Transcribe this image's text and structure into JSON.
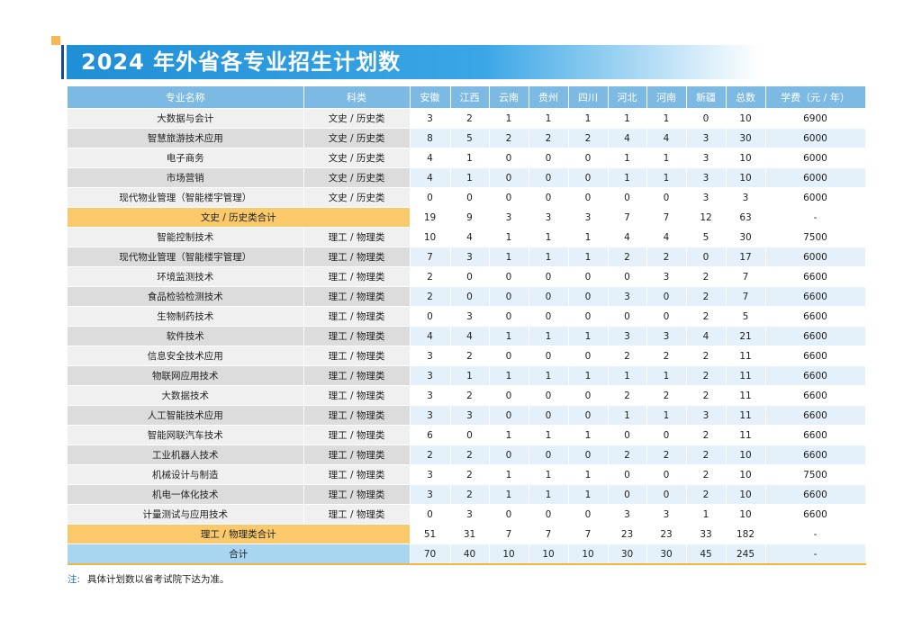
{
  "title": "2024 年外省各专业招生计划数",
  "table": {
    "header": [
      "专业名称",
      "科类",
      "安徽",
      "江西",
      "云南",
      "贵州",
      "四川",
      "河北",
      "河南",
      "新疆",
      "总数",
      "学费（元 / 年）"
    ],
    "liberal_rows": [
      [
        "大数据与会计",
        "文史 / 历史类",
        3,
        2,
        1,
        1,
        1,
        1,
        1,
        0,
        10,
        6900
      ],
      [
        "智慧旅游技术应用",
        "文史 / 历史类",
        8,
        5,
        2,
        2,
        2,
        4,
        4,
        3,
        30,
        6000
      ],
      [
        "电子商务",
        "文史 / 历史类",
        4,
        1,
        0,
        0,
        0,
        1,
        1,
        3,
        10,
        6000
      ],
      [
        "市场营销",
        "文史 / 历史类",
        4,
        1,
        0,
        0,
        0,
        1,
        1,
        3,
        10,
        6000
      ],
      [
        "现代物业管理（智能楼宇管理）",
        "文史 / 历史类",
        0,
        0,
        0,
        0,
        0,
        0,
        0,
        3,
        3,
        6000
      ]
    ],
    "liberal_subtotal": {
      "label": "文史 / 历史类合计",
      "values": [
        19,
        9,
        3,
        3,
        3,
        7,
        7,
        12,
        63,
        "-"
      ]
    },
    "science_rows": [
      [
        "智能控制技术",
        "理工 / 物理类",
        10,
        4,
        1,
        1,
        1,
        4,
        4,
        5,
        30,
        7500
      ],
      [
        "现代物业管理（智能楼宇管理）",
        "理工 / 物理类",
        7,
        3,
        1,
        1,
        1,
        2,
        2,
        0,
        17,
        6000
      ],
      [
        "环境监测技术",
        "理工 / 物理类",
        2,
        0,
        0,
        0,
        0,
        0,
        3,
        2,
        7,
        6600
      ],
      [
        "食品检验检测技术",
        "理工 / 物理类",
        2,
        0,
        0,
        0,
        0,
        3,
        0,
        2,
        7,
        6600
      ],
      [
        "生物制药技术",
        "理工 / 物理类",
        0,
        3,
        0,
        0,
        0,
        0,
        0,
        2,
        5,
        6600
      ],
      [
        "软件技术",
        "理工 / 物理类",
        4,
        4,
        1,
        1,
        1,
        3,
        3,
        4,
        21,
        6600
      ],
      [
        "信息安全技术应用",
        "理工 / 物理类",
        3,
        2,
        0,
        0,
        0,
        2,
        2,
        2,
        11,
        6600
      ],
      [
        "物联网应用技术",
        "理工 / 物理类",
        3,
        1,
        1,
        1,
        1,
        1,
        1,
        2,
        11,
        6600
      ],
      [
        "大数据技术",
        "理工 / 物理类",
        3,
        2,
        0,
        0,
        0,
        2,
        2,
        2,
        11,
        6600
      ],
      [
        "人工智能技术应用",
        "理工 / 物理类",
        3,
        3,
        0,
        0,
        0,
        1,
        1,
        3,
        11,
        6600
      ],
      [
        "智能网联汽车技术",
        "理工 / 物理类",
        6,
        0,
        1,
        1,
        1,
        0,
        0,
        2,
        11,
        6600
      ],
      [
        "工业机器人技术",
        "理工 / 物理类",
        2,
        2,
        0,
        0,
        0,
        2,
        2,
        2,
        10,
        6600
      ],
      [
        "机械设计与制造",
        "理工 / 物理类",
        3,
        2,
        1,
        1,
        1,
        0,
        0,
        2,
        10,
        7500
      ],
      [
        "机电一体化技术",
        "理工 / 物理类",
        3,
        2,
        1,
        1,
        1,
        0,
        0,
        2,
        10,
        6600
      ],
      [
        "计量测试与应用技术",
        "理工 / 物理类",
        0,
        3,
        0,
        0,
        0,
        3,
        3,
        1,
        10,
        6600
      ]
    ],
    "science_subtotal": {
      "label": "理工 / 物理类合计",
      "values": [
        51,
        31,
        7,
        7,
        7,
        23,
        23,
        33,
        182,
        "-"
      ]
    },
    "total": {
      "label": "合计",
      "values": [
        70,
        40,
        10,
        10,
        10,
        30,
        30,
        45,
        245,
        "-"
      ]
    }
  },
  "note": {
    "label": "注:",
    "text": "具体计划数以省考试院下达为准。"
  }
}
